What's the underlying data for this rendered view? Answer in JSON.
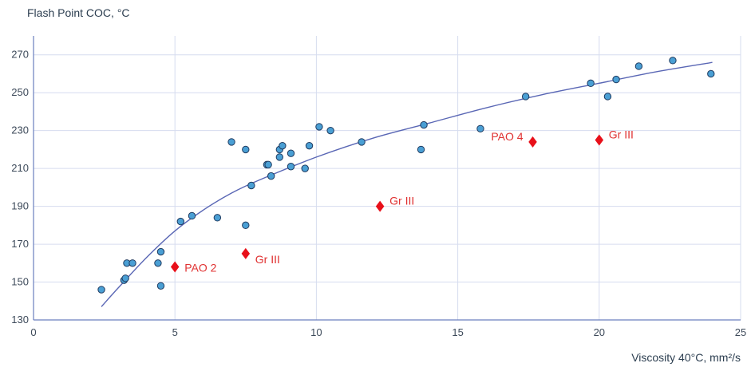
{
  "chart_data": {
    "type": "scatter",
    "title": "",
    "ylabel": "Flash Point COC, °C",
    "xlabel": "Viscosity 40°C, mm²/s",
    "xlim": [
      0,
      25
    ],
    "ylim": [
      130,
      280
    ],
    "xticks": [
      0,
      5,
      10,
      15,
      20,
      25
    ],
    "yticks": [
      130,
      150,
      170,
      190,
      210,
      230,
      250,
      270
    ],
    "grid": true,
    "colors": {
      "points": "#4a9fd4",
      "points_edge": "#1f3a5f",
      "trend": "#5a67b5",
      "highlight": "#e8101a",
      "grid": "#d6dcef",
      "axis": "#6a7fbf"
    },
    "series": [
      {
        "marker": "circle",
        "points": [
          [
            2.4,
            146
          ],
          [
            3.2,
            151
          ],
          [
            3.25,
            152
          ],
          [
            3.3,
            160
          ],
          [
            3.5,
            160
          ],
          [
            4.4,
            160
          ],
          [
            4.5,
            166
          ],
          [
            4.5,
            148
          ],
          [
            5.2,
            182
          ],
          [
            5.6,
            185
          ],
          [
            6.5,
            184
          ],
          [
            7.0,
            224
          ],
          [
            7.5,
            220
          ],
          [
            7.5,
            180
          ],
          [
            7.7,
            201
          ],
          [
            8.25,
            212
          ],
          [
            8.3,
            212
          ],
          [
            8.4,
            206
          ],
          [
            8.7,
            216
          ],
          [
            8.7,
            220
          ],
          [
            8.8,
            222
          ],
          [
            9.1,
            218
          ],
          [
            9.1,
            211
          ],
          [
            9.6,
            210
          ],
          [
            9.75,
            222
          ],
          [
            10.1,
            232
          ],
          [
            10.5,
            230
          ],
          [
            11.6,
            224
          ],
          [
            13.7,
            220
          ],
          [
            13.8,
            233
          ],
          [
            15.8,
            231
          ],
          [
            17.4,
            248
          ],
          [
            19.7,
            255
          ],
          [
            20.3,
            248
          ],
          [
            20.6,
            257
          ],
          [
            21.4,
            264
          ],
          [
            22.6,
            267
          ],
          [
            23.95,
            260
          ]
        ]
      },
      {
        "marker": "diamond",
        "points": [
          {
            "x": 5.0,
            "y": 158,
            "label": "PAO 2"
          },
          {
            "x": 7.5,
            "y": 165,
            "label": "Gr III"
          },
          {
            "x": 12.25,
            "y": 190,
            "label": "Gr III"
          },
          {
            "x": 17.65,
            "y": 224,
            "label": "PAO 4"
          },
          {
            "x": 20.0,
            "y": 225,
            "label": "Gr III"
          }
        ]
      },
      {
        "type": "line",
        "smooth": true,
        "points": [
          [
            2.4,
            137
          ],
          [
            3,
            147
          ],
          [
            4,
            163
          ],
          [
            5,
            177
          ],
          [
            6,
            188
          ],
          [
            7,
            197
          ],
          [
            8,
            204
          ],
          [
            10,
            216
          ],
          [
            12,
            226
          ],
          [
            14,
            234
          ],
          [
            16,
            242
          ],
          [
            18,
            249
          ],
          [
            20,
            255
          ],
          [
            22,
            261
          ],
          [
            24,
            266
          ]
        ]
      }
    ]
  }
}
